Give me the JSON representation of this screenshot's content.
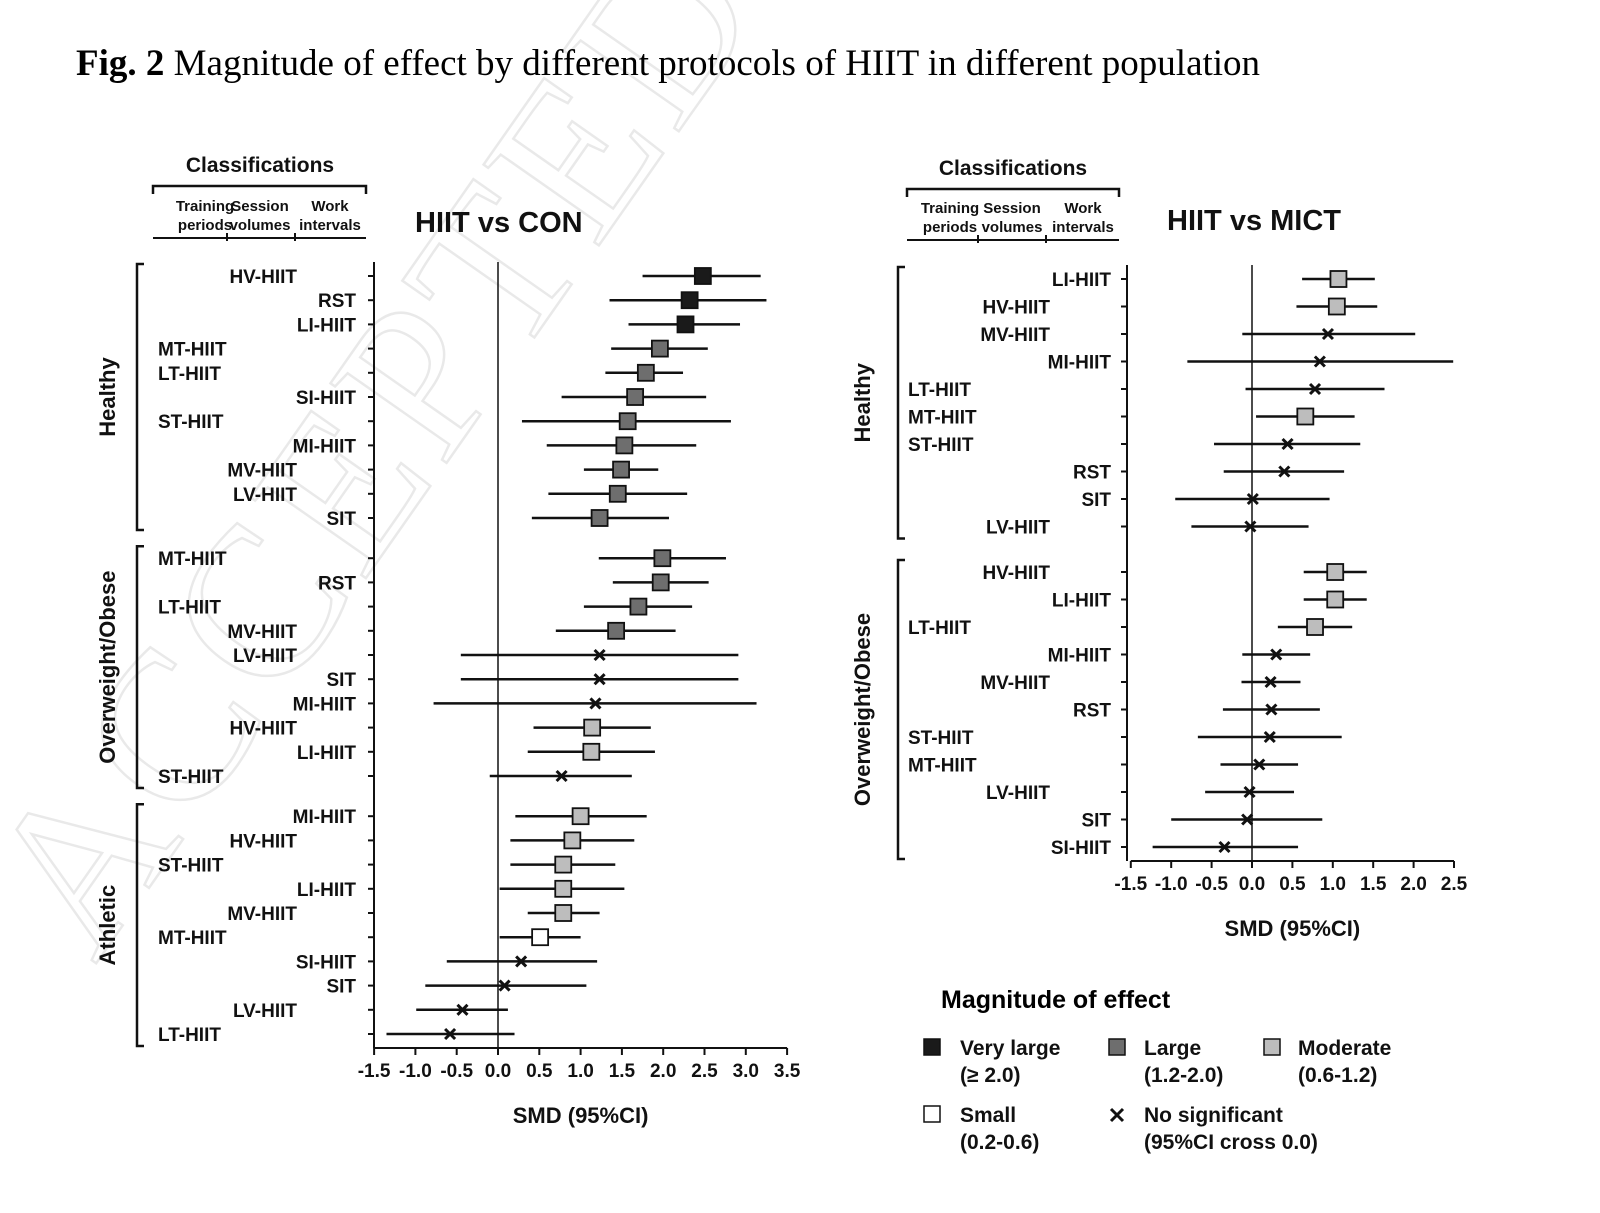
{
  "figure": {
    "label": "Fig. 2",
    "caption": "Magnitude of effect by different protocols of HIIT in different population"
  },
  "watermark": "ACCEPTED MA",
  "classifications": {
    "title": "Classifications",
    "col1": [
      "Training",
      "periods"
    ],
    "col2": [
      "Session",
      "volumes"
    ],
    "col3": [
      "Work",
      "intervals"
    ]
  },
  "legend": {
    "title": "Magnitude of effect",
    "items": [
      {
        "key": "very_large",
        "label": "Very large",
        "sub": "(≥ 2.0)",
        "color": "#1a1a1a",
        "marker": "square"
      },
      {
        "key": "large",
        "label": "Large",
        "sub": "(1.2-2.0)",
        "color": "#6e6e6e",
        "marker": "square"
      },
      {
        "key": "moderate",
        "label": "Moderate",
        "sub": "(0.6-1.2)",
        "color": "#bdbdbd",
        "marker": "square"
      },
      {
        "key": "small",
        "label": "Small",
        "sub": "(0.2-0.6)",
        "color": "#ffffff",
        "marker": "square"
      },
      {
        "key": "ns",
        "label": "No significant",
        "sub": "(95%CI cross 0.0)",
        "color": "#111111",
        "marker": "x"
      }
    ]
  },
  "chart_data": [
    {
      "type": "forest",
      "title": "HIIT vs CON",
      "xlabel": "SMD (95%CI)",
      "xlim": [
        -1.5,
        3.5
      ],
      "xticks": [
        "-1.5",
        "-1.0",
        "-0.5",
        "0.0",
        "0.5",
        "1.0",
        "1.5",
        "2.0",
        "2.5",
        "3.0",
        "3.5"
      ],
      "groups": [
        {
          "name": "Healthy",
          "rows": [
            {
              "label": "HV-HIIT",
              "col": 2,
              "est": 2.48,
              "lo": 1.75,
              "hi": 3.18,
              "cat": "very_large"
            },
            {
              "label": "RST",
              "col": 3,
              "est": 2.32,
              "lo": 1.35,
              "hi": 3.25,
              "cat": "very_large"
            },
            {
              "label": "LI-HIIT",
              "col": 3,
              "est": 2.27,
              "lo": 1.58,
              "hi": 2.93,
              "cat": "very_large"
            },
            {
              "label": "MT-HIIT",
              "col": 1,
              "est": 1.96,
              "lo": 1.37,
              "hi": 2.54,
              "cat": "large"
            },
            {
              "label": "LT-HIIT",
              "col": 1,
              "est": 1.79,
              "lo": 1.3,
              "hi": 2.24,
              "cat": "large"
            },
            {
              "label": "SI-HIIT",
              "col": 3,
              "est": 1.66,
              "lo": 0.77,
              "hi": 2.52,
              "cat": "large"
            },
            {
              "label": "ST-HIIT",
              "col": 1,
              "est": 1.57,
              "lo": 0.29,
              "hi": 2.82,
              "cat": "large"
            },
            {
              "label": "MI-HIIT",
              "col": 3,
              "est": 1.53,
              "lo": 0.59,
              "hi": 2.4,
              "cat": "large"
            },
            {
              "label": "MV-HIIT",
              "col": 2,
              "est": 1.49,
              "lo": 1.04,
              "hi": 1.94,
              "cat": "large"
            },
            {
              "label": "LV-HIIT",
              "col": 2,
              "est": 1.45,
              "lo": 0.61,
              "hi": 2.29,
              "cat": "large"
            },
            {
              "label": "SIT",
              "col": 3,
              "est": 1.23,
              "lo": 0.41,
              "hi": 2.07,
              "cat": "large"
            }
          ]
        },
        {
          "name": "Overweight/Obese",
          "rows": [
            {
              "label": "MT-HIIT",
              "col": 1,
              "est": 1.99,
              "lo": 1.22,
              "hi": 2.76,
              "cat": "large"
            },
            {
              "label": "RST",
              "col": 3,
              "est": 1.97,
              "lo": 1.39,
              "hi": 2.55,
              "cat": "large"
            },
            {
              "label": "LT-HIIT",
              "col": 1,
              "est": 1.7,
              "lo": 1.04,
              "hi": 2.35,
              "cat": "large"
            },
            {
              "label": "MV-HIIT",
              "col": 2,
              "est": 1.43,
              "lo": 0.7,
              "hi": 2.15,
              "cat": "large"
            },
            {
              "label": "LV-HIIT",
              "col": 2,
              "est": 1.23,
              "lo": -0.45,
              "hi": 2.91,
              "cat": "ns"
            },
            {
              "label": "SIT",
              "col": 3,
              "est": 1.23,
              "lo": -0.45,
              "hi": 2.91,
              "cat": "ns"
            },
            {
              "label": "MI-HIIT",
              "col": 3,
              "est": 1.18,
              "lo": -0.78,
              "hi": 3.13,
              "cat": "ns"
            },
            {
              "label": "HV-HIIT",
              "col": 2,
              "est": 1.14,
              "lo": 0.43,
              "hi": 1.85,
              "cat": "moderate"
            },
            {
              "label": "LI-HIIT",
              "col": 3,
              "est": 1.13,
              "lo": 0.36,
              "hi": 1.9,
              "cat": "moderate"
            },
            {
              "label": "ST-HIIT",
              "col": 1,
              "est": 0.77,
              "lo": -0.1,
              "hi": 1.62,
              "cat": "ns"
            }
          ]
        },
        {
          "name": "Athletic",
          "rows": [
            {
              "label": "MI-HIIT",
              "col": 3,
              "est": 1.0,
              "lo": 0.21,
              "hi": 1.8,
              "cat": "moderate"
            },
            {
              "label": "HV-HIIT",
              "col": 2,
              "est": 0.9,
              "lo": 0.15,
              "hi": 1.65,
              "cat": "moderate"
            },
            {
              "label": "ST-HIIT",
              "col": 1,
              "est": 0.79,
              "lo": 0.15,
              "hi": 1.42,
              "cat": "moderate"
            },
            {
              "label": "LI-HIIT",
              "col": 3,
              "est": 0.79,
              "lo": 0.02,
              "hi": 1.53,
              "cat": "moderate"
            },
            {
              "label": "MV-HIIT",
              "col": 2,
              "est": 0.79,
              "lo": 0.36,
              "hi": 1.23,
              "cat": "moderate"
            },
            {
              "label": "MT-HIIT",
              "col": 1,
              "est": 0.51,
              "lo": 0.02,
              "hi": 1.0,
              "cat": "small"
            },
            {
              "label": "SI-HIIT",
              "col": 3,
              "est": 0.28,
              "lo": -0.62,
              "hi": 1.2,
              "cat": "ns"
            },
            {
              "label": "SIT",
              "col": 3,
              "est": 0.08,
              "lo": -0.88,
              "hi": 1.07,
              "cat": "ns"
            },
            {
              "label": "LV-HIIT",
              "col": 2,
              "est": -0.43,
              "lo": -0.99,
              "hi": 0.12,
              "cat": "ns"
            },
            {
              "label": "LT-HIIT",
              "col": 1,
              "est": -0.58,
              "lo": -1.35,
              "hi": 0.2,
              "cat": "ns"
            }
          ]
        }
      ]
    },
    {
      "type": "forest",
      "title": "HIIT vs MICT",
      "xlabel": "SMD (95%CI)",
      "xlim": [
        -1.5,
        2.5
      ],
      "xticks": [
        "-1.5",
        "-1.0",
        "-0.5",
        "0.0",
        "0.5",
        "1.0",
        "1.5",
        "2.0",
        "2.5"
      ],
      "groups": [
        {
          "name": "Healthy",
          "rows": [
            {
              "label": "LI-HIIT",
              "col": 3,
              "est": 1.07,
              "lo": 0.62,
              "hi": 1.52,
              "cat": "moderate"
            },
            {
              "label": "HV-HIIT",
              "col": 2,
              "est": 1.05,
              "lo": 0.55,
              "hi": 1.55,
              "cat": "moderate"
            },
            {
              "label": "MV-HIIT",
              "col": 2,
              "est": 0.94,
              "lo": -0.12,
              "hi": 2.02,
              "cat": "ns"
            },
            {
              "label": "MI-HIIT",
              "col": 3,
              "est": 0.84,
              "lo": -0.8,
              "hi": 2.49,
              "cat": "ns"
            },
            {
              "label": "LT-HIIT",
              "col": 1,
              "est": 0.78,
              "lo": -0.08,
              "hi": 1.64,
              "cat": "ns"
            },
            {
              "label": "MT-HIIT",
              "col": 1,
              "est": 0.66,
              "lo": 0.05,
              "hi": 1.27,
              "cat": "moderate"
            },
            {
              "label": "ST-HIIT",
              "col": 1,
              "est": 0.44,
              "lo": -0.47,
              "hi": 1.34,
              "cat": "ns"
            },
            {
              "label": "RST",
              "col": 3,
              "est": 0.4,
              "lo": -0.35,
              "hi": 1.14,
              "cat": "ns"
            },
            {
              "label": "SIT",
              "col": 3,
              "est": 0.01,
              "lo": -0.95,
              "hi": 0.96,
              "cat": "ns"
            },
            {
              "label": "LV-HIIT",
              "col": 2,
              "est": -0.02,
              "lo": -0.75,
              "hi": 0.7,
              "cat": "ns"
            }
          ]
        },
        {
          "name": "Overweight/Obese",
          "rows": [
            {
              "label": "HV-HIIT",
              "col": 2,
              "est": 1.03,
              "lo": 0.64,
              "hi": 1.42,
              "cat": "moderate"
            },
            {
              "label": "LI-HIIT",
              "col": 3,
              "est": 1.03,
              "lo": 0.64,
              "hi": 1.42,
              "cat": "moderate"
            },
            {
              "label": "LT-HIIT",
              "col": 1,
              "est": 0.78,
              "lo": 0.32,
              "hi": 1.24,
              "cat": "moderate"
            },
            {
              "label": "MI-HIIT",
              "col": 3,
              "est": 0.3,
              "lo": -0.12,
              "hi": 0.72,
              "cat": "ns"
            },
            {
              "label": "MV-HIIT",
              "col": 2,
              "est": 0.23,
              "lo": -0.13,
              "hi": 0.6,
              "cat": "ns"
            },
            {
              "label": "RST",
              "col": 3,
              "est": 0.24,
              "lo": -0.36,
              "hi": 0.84,
              "cat": "ns"
            },
            {
              "label": "ST-HIIT",
              "col": 1,
              "est": 0.22,
              "lo": -0.67,
              "hi": 1.11,
              "cat": "ns"
            },
            {
              "label": "MT-HIIT",
              "col": 1,
              "est": 0.09,
              "lo": -0.39,
              "hi": 0.57,
              "cat": "ns"
            },
            {
              "label": "LV-HIIT",
              "col": 2,
              "est": -0.03,
              "lo": -0.58,
              "hi": 0.52,
              "cat": "ns"
            },
            {
              "label": "SIT",
              "col": 3,
              "est": -0.06,
              "lo": -1.0,
              "hi": 0.87,
              "cat": "ns"
            },
            {
              "label": "SI-HIIT",
              "col": 3,
              "est": -0.34,
              "lo": -1.23,
              "hi": 0.57,
              "cat": "ns"
            }
          ]
        }
      ]
    }
  ]
}
